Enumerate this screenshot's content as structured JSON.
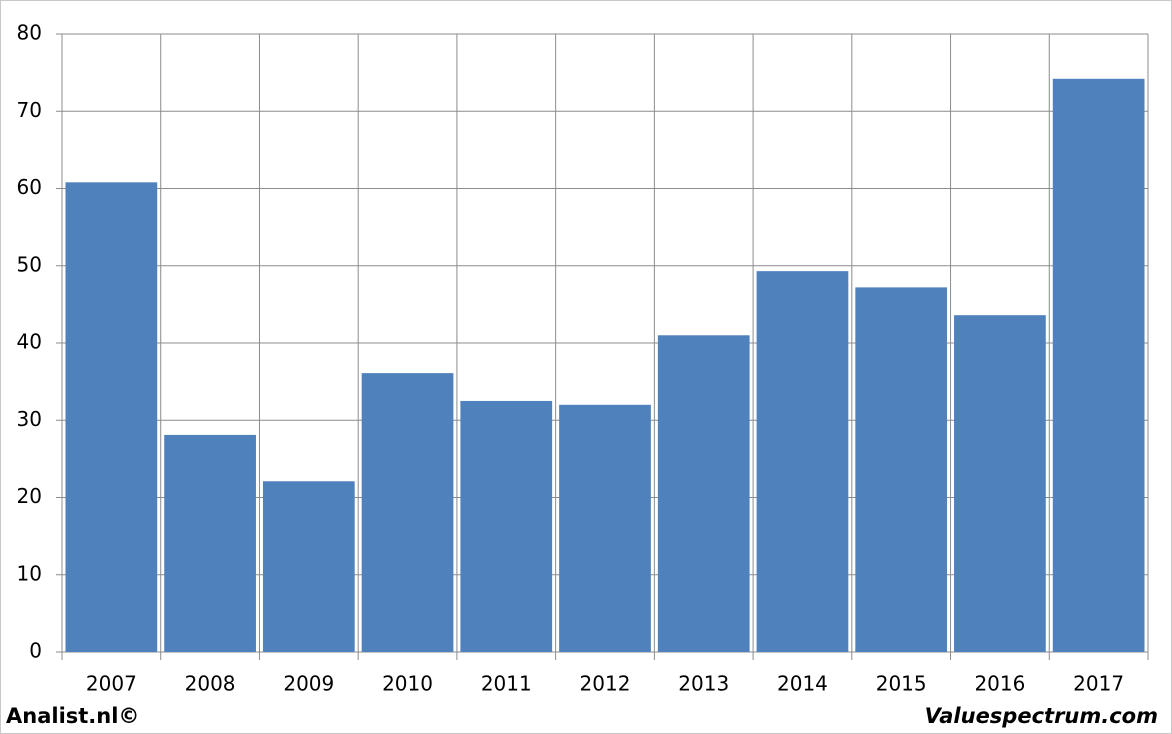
{
  "chart_data": {
    "type": "bar",
    "categories": [
      "2007",
      "2008",
      "2009",
      "2010",
      "2011",
      "2012",
      "2013",
      "2014",
      "2015",
      "2016",
      "2017"
    ],
    "values": [
      60.8,
      28.1,
      22.1,
      36.1,
      32.5,
      32.0,
      41.0,
      49.3,
      47.2,
      43.6,
      74.2
    ],
    "color": "#4f81bd",
    "ylim": [
      0,
      80
    ],
    "yticks": [
      0,
      10,
      20,
      30,
      40,
      50,
      60,
      70,
      80
    ],
    "grid": true,
    "annotations": [
      "Analist.nl©",
      "Valuespectrum.com"
    ]
  }
}
